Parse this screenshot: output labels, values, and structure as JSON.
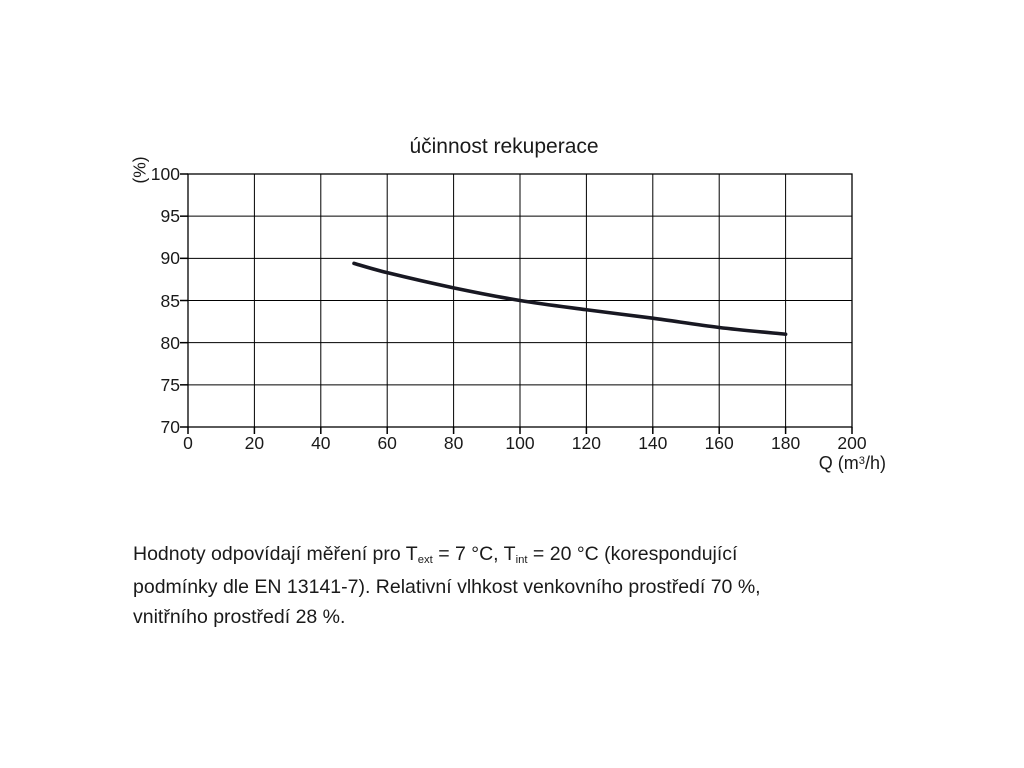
{
  "chart_data": {
    "type": "line",
    "title": "účinnost rekuperace",
    "xlabel": "Q (m³/h)",
    "xlabel_parts": {
      "pre": "Q (m",
      "sup": "3",
      "post": "/h)"
    },
    "ylabel": "(%)",
    "xlim": [
      0,
      200
    ],
    "ylim": [
      70,
      100
    ],
    "x_ticks": [
      0,
      20,
      40,
      60,
      80,
      100,
      120,
      140,
      160,
      180,
      200
    ],
    "y_ticks": [
      70,
      75,
      80,
      85,
      90,
      95,
      100
    ],
    "grid": true,
    "legend_position": "none",
    "series": [
      {
        "name": "účinnost rekuperace",
        "x": [
          50,
          60,
          80,
          100,
          120,
          140,
          160,
          180
        ],
        "y": [
          89.4,
          88.3,
          86.5,
          85.0,
          83.9,
          82.9,
          81.8,
          81.0
        ],
        "color": "#181822",
        "stroke_width": 3.6
      }
    ]
  },
  "colors": {
    "grid": "#000000",
    "frame": "#000000",
    "text": "#1a1a1a"
  },
  "footnote": {
    "lines": [
      [
        {
          "t": "Hodnoty odpovídají měření pro T"
        },
        {
          "t": "ext",
          "sub": true
        },
        {
          "t": " = 7 °C, T"
        },
        {
          "t": "int",
          "sub": true
        },
        {
          "t": " = 20 °C (korespondující"
        }
      ],
      [
        {
          "t": "podmínky dle EN 13141-7). Relativní vlhkost venkovního prostředí 70 %,"
        }
      ],
      [
        {
          "t": "vnitřního prostředí 28 %."
        }
      ]
    ]
  }
}
